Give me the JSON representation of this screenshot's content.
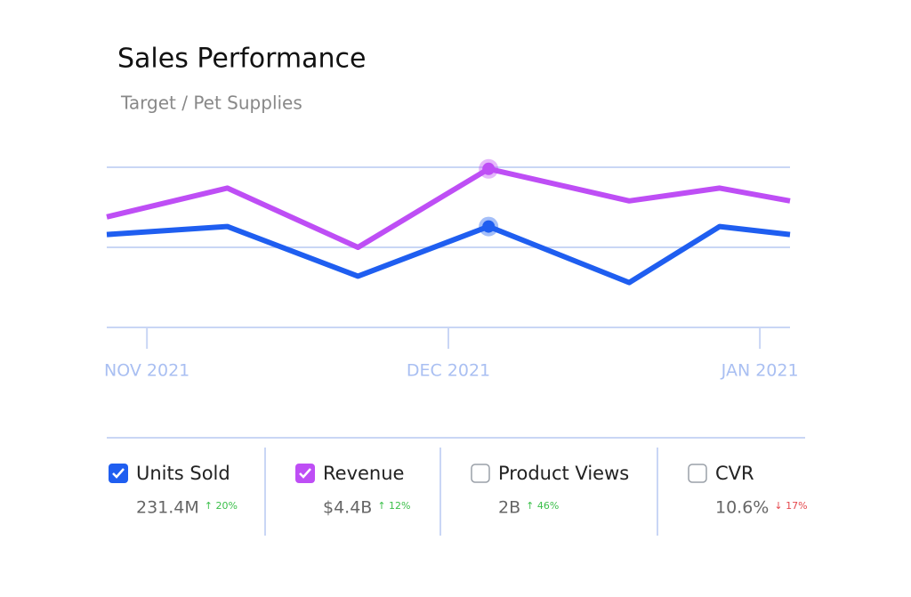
{
  "header": {
    "title": "Sales Performance",
    "subtitle": "Target / Pet Supplies"
  },
  "chart_data": {
    "type": "line",
    "x": [
      -4,
      8,
      21,
      34,
      48,
      57,
      64
    ],
    "xlim": [
      -4,
      64
    ],
    "xticks": [
      {
        "value": 0,
        "label": "NOV 2021"
      },
      {
        "value": 30,
        "label": "DEC 2021"
      },
      {
        "value": 61,
        "label": "JAN 2021"
      }
    ],
    "ylim": [
      0,
      100
    ],
    "grid_values": [
      50,
      100
    ],
    "highlight_index": 3,
    "series": [
      {
        "name": "Units Sold",
        "color": "#1f5ef0",
        "values": [
          58,
          63,
          32,
          63,
          28,
          63,
          58
        ],
        "total": "231.4M",
        "change": "↑ 20%",
        "trend": "up",
        "checked": true
      },
      {
        "name": "Revenue",
        "color": "#be4ef5",
        "values": [
          69,
          87,
          50,
          99,
          79,
          87,
          79
        ],
        "total": "$4.4B",
        "change": "↑ 12%",
        "trend": "up",
        "checked": true
      }
    ]
  },
  "other_metrics": [
    {
      "name": "Product Views",
      "total": "2B",
      "change": "↑ 46%",
      "trend": "up",
      "checked": false
    },
    {
      "name": "CVR",
      "total": "10.6%",
      "change": "↓ 17%",
      "trend": "down",
      "checked": false
    }
  ]
}
